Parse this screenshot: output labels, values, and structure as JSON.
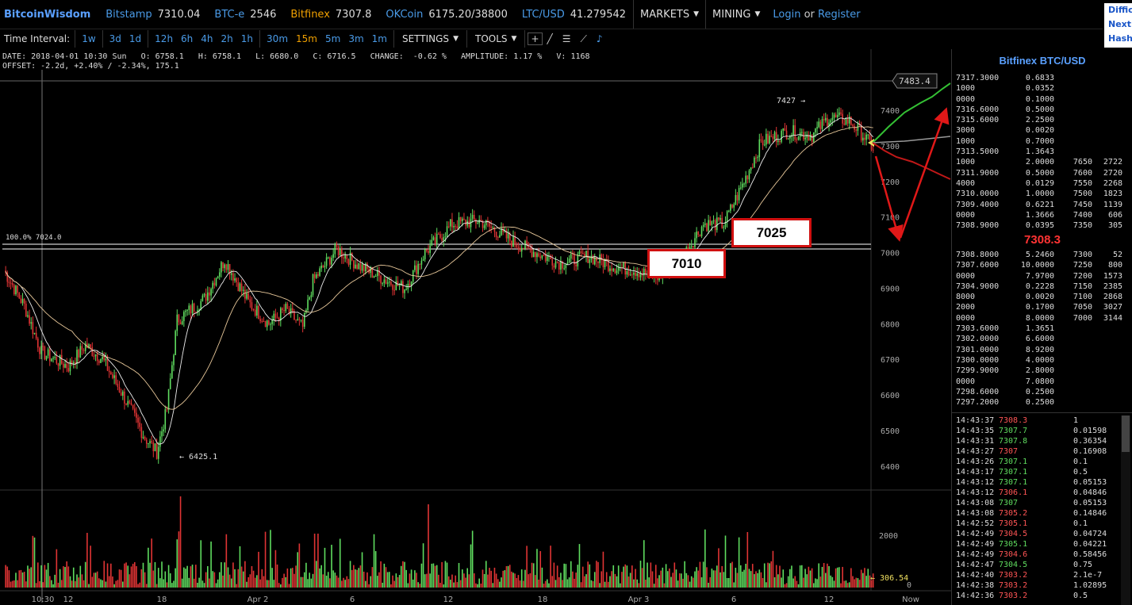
{
  "topbar": {
    "brand": "BitcoinWisdom",
    "markets": [
      {
        "name": "Bitstamp",
        "price": "7310.04"
      },
      {
        "name": "BTC-e",
        "price": "2546"
      },
      {
        "name": "Bitfinex",
        "price": "7307.8",
        "active": true
      },
      {
        "name": "OKCoin",
        "price": "6175.20/38800"
      },
      {
        "name": "LTC/USD",
        "price": "41.279542"
      }
    ],
    "markets_menu": "MARKETS",
    "mining_menu": "MINING",
    "login": "Login",
    "or": "or",
    "register": "Register",
    "side_lines": [
      "Diffic",
      "Next:",
      "Hash"
    ]
  },
  "toolbar": {
    "label": "Time Interval:",
    "groups": [
      [
        "1w"
      ],
      [
        "3d",
        "1d"
      ],
      [
        "12h",
        "6h",
        "4h",
        "2h",
        "1h"
      ],
      [
        "30m",
        "15m",
        "5m",
        "3m",
        "1m"
      ]
    ],
    "selected": "15m",
    "settings": "SETTINGS",
    "tools": "TOOLS",
    "tool_icons": [
      "crosshair-icon",
      "line-tool-icon",
      "fib-lines-icon",
      "draw-tool-icon",
      "alarm-bell-icon"
    ]
  },
  "info": {
    "line1": "DATE: 2018-04-01 10:30 Sun   O: 6758.1   H: 6758.1   L: 6680.0   C: 6716.5   CHANGE:  -0.62 %   AMPLITUDE: 1.17 %   V: 1168",
    "line2": "OFFSET: -2.2d, +2.40% / -2.34%, 175.1"
  },
  "chart_data": {
    "type": "candlestick",
    "price_axis": {
      "ticks": [
        7400,
        7300,
        7200,
        7100,
        7000,
        6900,
        6800,
        6700,
        6600,
        6500,
        6400
      ],
      "range": [
        6330,
        7560
      ]
    },
    "volume_axis": {
      "ticks": [
        2000,
        0
      ]
    },
    "x_labels": [
      "10:30",
      "12",
      "18",
      "Apr 2",
      "6",
      "12",
      "18",
      "Apr 3",
      "6",
      "12",
      "Now"
    ],
    "annotations": {
      "high_label": "7427 →",
      "low_label": "← 6425.1",
      "price_tag": "7483.4",
      "fib_label": "100.0% 7024.0",
      "volume_tag": "← 306.54"
    },
    "callouts": [
      "7025",
      "7010"
    ],
    "anchors": [
      [
        0,
        6950
      ],
      [
        12,
        6850
      ],
      [
        22,
        6720
      ],
      [
        38,
        6680
      ],
      [
        48,
        6740
      ],
      [
        58,
        6700
      ],
      [
        70,
        6600
      ],
      [
        83,
        6480
      ],
      [
        90,
        6440
      ],
      [
        96,
        6560
      ],
      [
        102,
        6810
      ],
      [
        118,
        6870
      ],
      [
        130,
        6980
      ],
      [
        144,
        6860
      ],
      [
        156,
        6800
      ],
      [
        166,
        6840
      ],
      [
        176,
        6790
      ],
      [
        182,
        6920
      ],
      [
        196,
        7010
      ],
      [
        210,
        6960
      ],
      [
        226,
        6920
      ],
      [
        236,
        6900
      ],
      [
        248,
        7000
      ],
      [
        264,
        7080
      ],
      [
        280,
        7090
      ],
      [
        300,
        7030
      ],
      [
        318,
        6990
      ],
      [
        328,
        6970
      ],
      [
        344,
        6990
      ],
      [
        360,
        6960
      ],
      [
        372,
        6950
      ],
      [
        384,
        6930
      ],
      [
        396,
        6960
      ],
      [
        412,
        7080
      ],
      [
        424,
        7080
      ],
      [
        436,
        7200
      ],
      [
        446,
        7310
      ],
      [
        462,
        7340
      ],
      [
        476,
        7330
      ],
      [
        486,
        7380
      ],
      [
        498,
        7370
      ],
      [
        506,
        7330
      ],
      [
        512,
        7295
      ]
    ],
    "orderbook_paths": {
      "green": [
        [
          1100,
          180
        ],
        [
          1120,
          160
        ],
        [
          1140,
          142
        ],
        [
          1160,
          130
        ],
        [
          1175,
          122
        ],
        [
          1188,
          112
        ],
        [
          1198,
          105
        ]
      ],
      "grey": [
        [
          1100,
          180
        ],
        [
          1140,
          178
        ],
        [
          1170,
          175
        ],
        [
          1198,
          172
        ]
      ],
      "red": [
        [
          1100,
          180
        ],
        [
          1115,
          190
        ],
        [
          1130,
          198
        ],
        [
          1150,
          204
        ],
        [
          1168,
          212
        ],
        [
          1185,
          220
        ],
        [
          1198,
          226
        ]
      ]
    }
  },
  "panel": {
    "title": "Bitfinex BTC/USD",
    "mid_price": "7308.3",
    "asks": [
      [
        "7317.3000",
        "0.6833",
        "",
        ""
      ],
      [
        "1000",
        "0.0352",
        "",
        ""
      ],
      [
        "0000",
        "0.1000",
        "",
        ""
      ],
      [
        "7316.6000",
        "0.5000",
        "",
        ""
      ],
      [
        "7315.6000",
        "2.2500",
        "",
        ""
      ],
      [
        "3000",
        "0.0020",
        "",
        ""
      ],
      [
        "1000",
        "0.7000",
        "",
        ""
      ],
      [
        "7313.5000",
        "1.3643",
        "",
        ""
      ],
      [
        "1000",
        "2.0000",
        "7650",
        "2722"
      ],
      [
        "7311.9000",
        "0.5000",
        "7600",
        "2720"
      ],
      [
        "4000",
        "0.0129",
        "7550",
        "2268"
      ],
      [
        "7310.0000",
        "1.0000",
        "7500",
        "1823"
      ],
      [
        "7309.4000",
        "0.6221",
        "7450",
        "1139"
      ],
      [
        "0000",
        "1.3666",
        "7400",
        "606"
      ],
      [
        "7308.9000",
        "0.0395",
        "7350",
        "305"
      ]
    ],
    "bids": [
      [
        "7308.8000",
        "5.2460",
        "7300",
        "52"
      ],
      [
        "7307.6000",
        "10.0000",
        "7250",
        "800"
      ],
      [
        "0000",
        "7.9700",
        "7200",
        "1573"
      ],
      [
        "7304.9000",
        "0.2228",
        "7150",
        "2385"
      ],
      [
        "8000",
        "0.0020",
        "7100",
        "2868"
      ],
      [
        "2000",
        "0.1700",
        "7050",
        "3027"
      ],
      [
        "0000",
        "8.0000",
        "7000",
        "3144"
      ],
      [
        "7303.6000",
        "1.3651",
        "",
        ""
      ],
      [
        "7302.0000",
        "6.6000",
        "",
        ""
      ],
      [
        "7301.0000",
        "8.9200",
        "",
        ""
      ],
      [
        "7300.0000",
        "4.0000",
        "",
        ""
      ],
      [
        "7299.9000",
        "2.8000",
        "",
        ""
      ],
      [
        "0000",
        "7.0800",
        "",
        ""
      ],
      [
        "7298.6000",
        "0.2500",
        "",
        ""
      ],
      [
        "7297.2000",
        "0.2500",
        "",
        ""
      ]
    ],
    "trades": [
      [
        "14:43:37",
        "7308.3",
        "1",
        "dn"
      ],
      [
        "14:43:35",
        "7307.7",
        "0.01598",
        "up"
      ],
      [
        "14:43:31",
        "7307.8",
        "0.36354",
        "up"
      ],
      [
        "14:43:27",
        "7307",
        "0.16908",
        "dn"
      ],
      [
        "14:43:26",
        "7307.1",
        "0.1",
        "up"
      ],
      [
        "14:43:17",
        "7307.1",
        "0.5",
        "up"
      ],
      [
        "14:43:12",
        "7307.1",
        "0.05153",
        "up"
      ],
      [
        "14:43:12",
        "7306.1",
        "0.04846",
        "dn"
      ],
      [
        "14:43:08",
        "7307",
        "0.05153",
        "up"
      ],
      [
        "14:43:08",
        "7305.2",
        "0.14846",
        "dn"
      ],
      [
        "14:42:52",
        "7305.1",
        "0.1",
        "dn"
      ],
      [
        "14:42:49",
        "7304.5",
        "0.04724",
        "dn"
      ],
      [
        "14:42:49",
        "7305.1",
        "0.04221",
        "up"
      ],
      [
        "14:42:49",
        "7304.6",
        "0.58456",
        "dn"
      ],
      [
        "14:42:47",
        "7304.5",
        "0.75",
        "up"
      ],
      [
        "14:42:40",
        "7303.2",
        "2.1e-7",
        "dn"
      ],
      [
        "14:42:38",
        "7303.2",
        "1.02895",
        "dn"
      ],
      [
        "14:42:36",
        "7303.2",
        "0.5",
        "dn"
      ]
    ]
  },
  "colors": {
    "up": "#5fdc5f",
    "down": "#e03434",
    "link": "#4a9be8",
    "active": "#f0a000",
    "arrow": "#e01818"
  }
}
